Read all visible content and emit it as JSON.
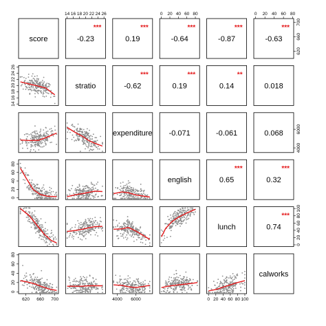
{
  "chart_data": {
    "type": "scatter",
    "title": "",
    "variables": [
      {
        "name": "score",
        "ticks": [
          620,
          660,
          700
        ],
        "range": [
          600,
          710
        ]
      },
      {
        "name": "stratio",
        "ticks": [
          14,
          16,
          18,
          20,
          22,
          24,
          26
        ],
        "range": [
          13.5,
          26.5
        ]
      },
      {
        "name": "expenditure",
        "ticks": [
          4000,
          6000
        ],
        "range": [
          3500,
          7800
        ]
      },
      {
        "name": "english",
        "ticks": [
          0,
          20,
          40,
          60,
          80
        ],
        "range": [
          -4,
          90
        ]
      },
      {
        "name": "lunch",
        "ticks": [
          0,
          20,
          40,
          60,
          80,
          100
        ],
        "range": [
          -5,
          105
        ]
      },
      {
        "name": "calworks",
        "ticks": [
          0,
          20,
          40,
          60,
          80
        ],
        "range": [
          -4,
          82
        ]
      }
    ],
    "correlations": [
      {
        "row": "score",
        "col": "stratio",
        "r": "-0.23",
        "stars": "***"
      },
      {
        "row": "score",
        "col": "expenditure",
        "r": "0.19",
        "stars": "***"
      },
      {
        "row": "score",
        "col": "english",
        "r": "-0.64",
        "stars": "***"
      },
      {
        "row": "score",
        "col": "lunch",
        "r": "-0.87",
        "stars": "***"
      },
      {
        "row": "score",
        "col": "calworks",
        "r": "-0.63",
        "stars": "***"
      },
      {
        "row": "stratio",
        "col": "expenditure",
        "r": "-0.62",
        "stars": "***"
      },
      {
        "row": "stratio",
        "col": "english",
        "r": "0.19",
        "stars": "***"
      },
      {
        "row": "stratio",
        "col": "lunch",
        "r": "0.14",
        "stars": "**"
      },
      {
        "row": "stratio",
        "col": "calworks",
        "r": "0.018",
        "stars": ""
      },
      {
        "row": "expenditure",
        "col": "english",
        "r": "-0.071",
        "stars": ""
      },
      {
        "row": "expenditure",
        "col": "lunch",
        "r": "-0.061",
        "stars": ""
      },
      {
        "row": "expenditure",
        "col": "calworks",
        "r": "0.068",
        "stars": ""
      },
      {
        "row": "english",
        "col": "lunch",
        "r": "0.65",
        "stars": "***"
      },
      {
        "row": "english",
        "col": "calworks",
        "r": "0.32",
        "stars": "***"
      },
      {
        "row": "lunch",
        "col": "calworks",
        "r": "0.74",
        "stars": "***"
      }
    ],
    "smoothers": [
      {
        "x": "score",
        "y": "stratio",
        "points": [
          [
            605,
            21.2
          ],
          [
            630,
            20.5
          ],
          [
            655,
            19.8
          ],
          [
            675,
            19.2
          ],
          [
            700,
            17.0
          ]
        ]
      },
      {
        "x": "score",
        "y": "expenditure",
        "points": [
          [
            605,
            4850
          ],
          [
            630,
            4800
          ],
          [
            655,
            4820
          ],
          [
            675,
            5100
          ],
          [
            705,
            5600
          ]
        ]
      },
      {
        "x": "stratio",
        "y": "expenditure",
        "points": [
          [
            14,
            6200
          ],
          [
            17,
            5600
          ],
          [
            19,
            5250
          ],
          [
            21,
            4800
          ],
          [
            23,
            4500
          ],
          [
            25.5,
            4200
          ]
        ]
      },
      {
        "x": "score",
        "y": "english",
        "points": [
          [
            605,
            70
          ],
          [
            620,
            48
          ],
          [
            640,
            20
          ],
          [
            660,
            8
          ],
          [
            680,
            4
          ],
          [
            705,
            3
          ]
        ]
      },
      {
        "x": "stratio",
        "y": "english",
        "points": [
          [
            14,
            3
          ],
          [
            17,
            8
          ],
          [
            19,
            10
          ],
          [
            21,
            13
          ],
          [
            23,
            16
          ],
          [
            25.5,
            15
          ]
        ]
      },
      {
        "x": "expenditure",
        "y": "english",
        "points": [
          [
            3600,
            10
          ],
          [
            4500,
            14
          ],
          [
            5200,
            12
          ],
          [
            6000,
            7
          ],
          [
            7500,
            2
          ]
        ]
      },
      {
        "x": "score",
        "y": "lunch",
        "points": [
          [
            605,
            100
          ],
          [
            630,
            80
          ],
          [
            650,
            55
          ],
          [
            670,
            30
          ],
          [
            690,
            12
          ],
          [
            705,
            5
          ]
        ]
      },
      {
        "x": "stratio",
        "y": "lunch",
        "points": [
          [
            14,
            37
          ],
          [
            17,
            40
          ],
          [
            19,
            43
          ],
          [
            21,
            47
          ],
          [
            23,
            50
          ],
          [
            25.5,
            51
          ]
        ]
      },
      {
        "x": "expenditure",
        "y": "lunch",
        "points": [
          [
            3600,
            43
          ],
          [
            4500,
            44
          ],
          [
            5200,
            48
          ],
          [
            6000,
            38
          ],
          [
            7500,
            15
          ]
        ]
      },
      {
        "x": "english",
        "y": "lunch",
        "points": [
          [
            0,
            22
          ],
          [
            10,
            45
          ],
          [
            25,
            64
          ],
          [
            40,
            76
          ],
          [
            60,
            88
          ],
          [
            80,
            98
          ]
        ]
      },
      {
        "x": "score",
        "y": "calworks",
        "points": [
          [
            605,
            24
          ],
          [
            625,
            21
          ],
          [
            645,
            17
          ],
          [
            665,
            11
          ],
          [
            685,
            6
          ],
          [
            705,
            3
          ]
        ]
      },
      {
        "x": "stratio",
        "y": "calworks",
        "points": [
          [
            14,
            12
          ],
          [
            17,
            12
          ],
          [
            19,
            12
          ],
          [
            21,
            13
          ],
          [
            23,
            13
          ],
          [
            25.5,
            13
          ]
        ]
      },
      {
        "x": "expenditure",
        "y": "calworks",
        "points": [
          [
            3600,
            15
          ],
          [
            4500,
            14
          ],
          [
            5200,
            11
          ],
          [
            6000,
            9
          ],
          [
            7500,
            14
          ]
        ]
      },
      {
        "x": "english",
        "y": "calworks",
        "points": [
          [
            0,
            9
          ],
          [
            15,
            12
          ],
          [
            30,
            14
          ],
          [
            50,
            16
          ],
          [
            70,
            18
          ],
          [
            85,
            20
          ]
        ]
      },
      {
        "x": "lunch",
        "y": "calworks",
        "points": [
          [
            0,
            2
          ],
          [
            20,
            5
          ],
          [
            40,
            10
          ],
          [
            60,
            15
          ],
          [
            80,
            20
          ],
          [
            100,
            24
          ]
        ]
      }
    ],
    "point_color": "#8c8c8c",
    "smoother_color": "#e41a1c",
    "stars_color": "#e41a1c"
  }
}
